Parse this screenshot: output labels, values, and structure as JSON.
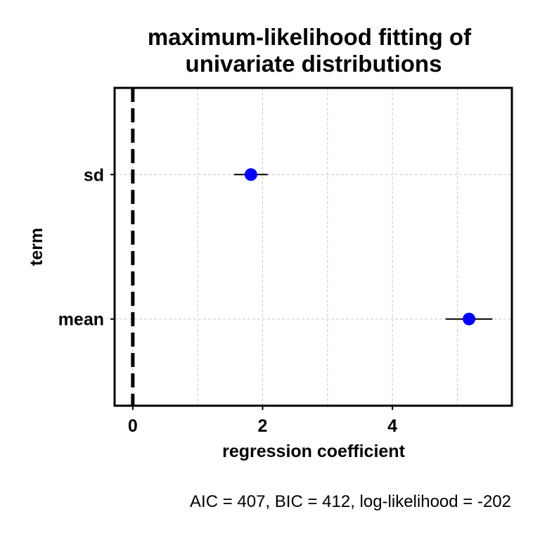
{
  "chart_data": {
    "type": "scatter",
    "title": [
      "maximum-likelihood fitting of",
      "univariate distributions"
    ],
    "xlabel": "regression coefficient",
    "ylabel": "term",
    "caption": "AIC = 407, BIC = 412, log-likelihood = -202",
    "categories": [
      "mean",
      "sd"
    ],
    "estimates": [
      {
        "term": "sd",
        "estimate": 1.82,
        "conf_low": 1.56,
        "conf_high": 2.08
      },
      {
        "term": "mean",
        "estimate": 5.18,
        "conf_low": 4.82,
        "conf_high": 5.54
      }
    ],
    "xlim": [
      -0.28,
      5.84
    ],
    "xticks": [
      0,
      2,
      4
    ],
    "x_gridlines": [
      0,
      1,
      2,
      3,
      4,
      5
    ],
    "reference_line_x": 0,
    "grid": true,
    "point_color": "#0000ff"
  }
}
